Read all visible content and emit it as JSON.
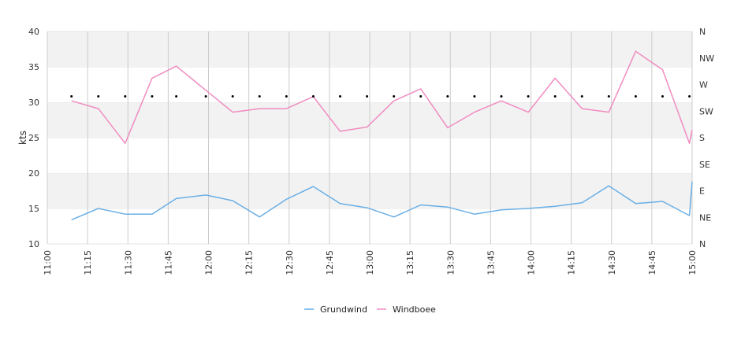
{
  "chart_data": {
    "type": "line",
    "xlabel": "",
    "ylabel": "kts",
    "ylim": [
      10,
      40
    ],
    "y_ticks": [
      10,
      15,
      20,
      25,
      30,
      35,
      40
    ],
    "x_ticks": [
      "11:00",
      "11:15",
      "11:30",
      "11:45",
      "12:00",
      "12:15",
      "12:30",
      "12:45",
      "13:00",
      "13:15",
      "13:30",
      "13:45",
      "14:00",
      "14:15",
      "14:30",
      "14:45",
      "15:00"
    ],
    "x_range_minutes": [
      660,
      900
    ],
    "grid": true,
    "y2_labels": [
      "N",
      "NE",
      "E",
      "SE",
      "S",
      "SW",
      "W",
      "NW",
      "N"
    ],
    "y2_range_degrees": [
      0,
      360
    ],
    "legend_position": "bottom-center",
    "colors": {
      "Grundwind": "#6aafe6",
      "Windboee": "#f08cc0",
      "band": "#f2f2f2",
      "grid": "#cccccc"
    },
    "x": [
      "11:09",
      "11:19",
      "11:29",
      "11:39",
      "11:48",
      "11:59",
      "12:09",
      "12:19",
      "12:29",
      "12:39",
      "12:49",
      "12:59",
      "13:09",
      "13:19",
      "13:29",
      "13:39",
      "13:49",
      "13:59",
      "14:09",
      "14:19",
      "14:29",
      "14:39",
      "14:49",
      "14:59",
      "15:00"
    ],
    "series": [
      {
        "name": "Grundwind",
        "values": [
          13.4,
          15.0,
          14.2,
          14.2,
          16.4,
          16.9,
          16.1,
          13.8,
          16.3,
          18.1,
          15.7,
          15.1,
          13.8,
          15.5,
          15.2,
          14.2,
          14.8,
          15.0,
          15.3,
          15.8,
          18.2,
          15.7,
          16.0,
          14.0,
          18.8
        ]
      },
      {
        "name": "Windboee",
        "values": [
          30.2,
          29.1,
          24.2,
          33.4,
          35.1,
          31.7,
          28.6,
          29.1,
          29.1,
          30.8,
          25.9,
          26.5,
          30.2,
          31.9,
          26.4,
          28.6,
          30.2,
          28.6,
          33.4,
          29.1,
          28.6,
          37.2,
          34.6,
          24.2,
          26.1
        ]
      }
    ],
    "direction_x": [
      "11:09",
      "11:19",
      "11:29",
      "11:39",
      "11:48",
      "11:59",
      "12:09",
      "12:19",
      "12:29",
      "12:39",
      "12:49",
      "12:59",
      "13:09",
      "13:19",
      "13:29",
      "13:39",
      "13:49",
      "13:59",
      "14:09",
      "14:19",
      "14:29",
      "14:39",
      "14:49",
      "14:59"
    ],
    "direction_degrees": [
      250,
      250,
      250,
      250,
      250,
      250,
      250,
      250,
      250,
      250,
      250,
      250,
      250,
      250,
      250,
      250,
      250,
      250,
      250,
      250,
      250,
      250,
      250,
      250
    ]
  }
}
